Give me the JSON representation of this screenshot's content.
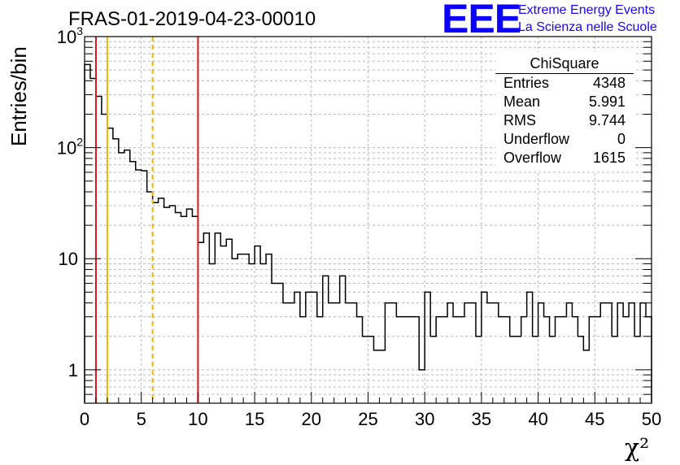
{
  "header": {
    "title": "FRAS-01-2019-04-23-00010"
  },
  "logo": {
    "mark": "EEE",
    "line1": "Extreme Energy Events",
    "line2": "La Scienza nelle Scuole",
    "color": "#1a00ff"
  },
  "stats": {
    "title": "ChiSquare",
    "rows": [
      {
        "label": "Entries",
        "value": "4348"
      },
      {
        "label": "Mean",
        "value": "5.991"
      },
      {
        "label": "RMS",
        "value": "9.744"
      },
      {
        "label": "Underflow",
        "value": "0"
      },
      {
        "label": "Overflow",
        "value": "1615"
      }
    ]
  },
  "chart_data": {
    "type": "histogram",
    "xlabel": "χ²",
    "ylabel": "Entries/bin",
    "xlim": [
      0,
      50
    ],
    "ylim": [
      0.5,
      1000
    ],
    "yscale": "log",
    "grid": true,
    "bin_width": 0.5,
    "x_ticks": [
      "0",
      "5",
      "10",
      "15",
      "20",
      "25",
      "30",
      "35",
      "40",
      "45",
      "50"
    ],
    "y_ticks": [
      {
        "value": 1,
        "base": "1",
        "exp": ""
      },
      {
        "value": 10,
        "base": "10",
        "exp": ""
      },
      {
        "value": 100,
        "base": "10",
        "exp": "2"
      },
      {
        "value": 1000,
        "base": "10",
        "exp": "3"
      }
    ],
    "values": [
      560,
      420,
      290,
      200,
      150,
      120,
      90,
      95,
      75,
      63,
      62,
      40,
      32,
      35,
      29,
      30,
      26,
      24,
      28,
      24,
      14,
      17,
      9,
      17,
      13,
      15,
      10,
      11,
      11,
      9,
      13,
      9,
      11,
      6,
      6,
      4,
      4,
      5,
      3,
      5,
      5,
      3,
      7,
      4,
      4,
      7,
      4,
      4,
      3,
      2,
      2,
      1.5,
      1.5,
      4,
      4,
      3,
      3,
      3,
      3,
      1,
      5,
      2,
      3,
      3,
      4,
      3,
      3,
      4,
      4,
      2,
      5,
      4,
      4,
      3,
      3,
      2,
      2,
      3,
      5,
      2,
      4,
      3,
      2,
      3,
      3,
      4,
      3,
      2,
      1.5,
      3,
      3,
      4,
      4,
      2,
      4,
      3,
      4,
      2,
      4,
      3
    ],
    "vertical_lines": [
      {
        "x": 1,
        "color": "#e0141e",
        "style": "solid"
      },
      {
        "x": 2,
        "color": "#f0b400",
        "style": "solid"
      },
      {
        "x": 6,
        "color": "#f0b400",
        "style": "dashed"
      },
      {
        "x": 10,
        "color": "#e0141e",
        "style": "solid"
      }
    ]
  }
}
